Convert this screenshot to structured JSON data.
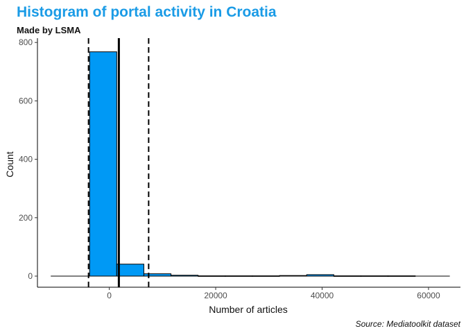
{
  "chart_data": {
    "type": "bar",
    "title": "Histogram of portal activity in Croatia",
    "subtitle": "Made by LSMA",
    "caption": "Source: Mediatoolkit dataset",
    "xlabel": "Number of articles",
    "ylabel": "Count",
    "xlim": [
      -13500,
      66000
    ],
    "ylim": [
      -38,
      810
    ],
    "x_ticks": [
      0,
      20000,
      40000,
      60000
    ],
    "y_ticks": [
      0,
      200,
      400,
      600,
      800
    ],
    "bins": [
      {
        "x0": -3700,
        "x1": 1400,
        "count": 768
      },
      {
        "x0": 1400,
        "x1": 6500,
        "count": 41
      },
      {
        "x0": 6500,
        "x1": 11600,
        "count": 8
      },
      {
        "x0": 11600,
        "x1": 16700,
        "count": 3
      },
      {
        "x0": 16700,
        "x1": 21800,
        "count": 1
      },
      {
        "x0": 21800,
        "x1": 26900,
        "count": 1
      },
      {
        "x0": 26900,
        "x1": 32000,
        "count": 1
      },
      {
        "x0": 32000,
        "x1": 37100,
        "count": 2
      },
      {
        "x0": 37100,
        "x1": 42200,
        "count": 5
      },
      {
        "x0": 42200,
        "x1": 47300,
        "count": 1
      },
      {
        "x0": 47300,
        "x1": 52400,
        "count": 1
      },
      {
        "x0": 52400,
        "x1": 57500,
        "count": 1
      }
    ],
    "baseline_range": [
      -11000,
      64000
    ],
    "mean_line": 1800,
    "sd_lines": [
      -3900,
      7400
    ],
    "bar_color": "#0099f5",
    "grid": false
  }
}
